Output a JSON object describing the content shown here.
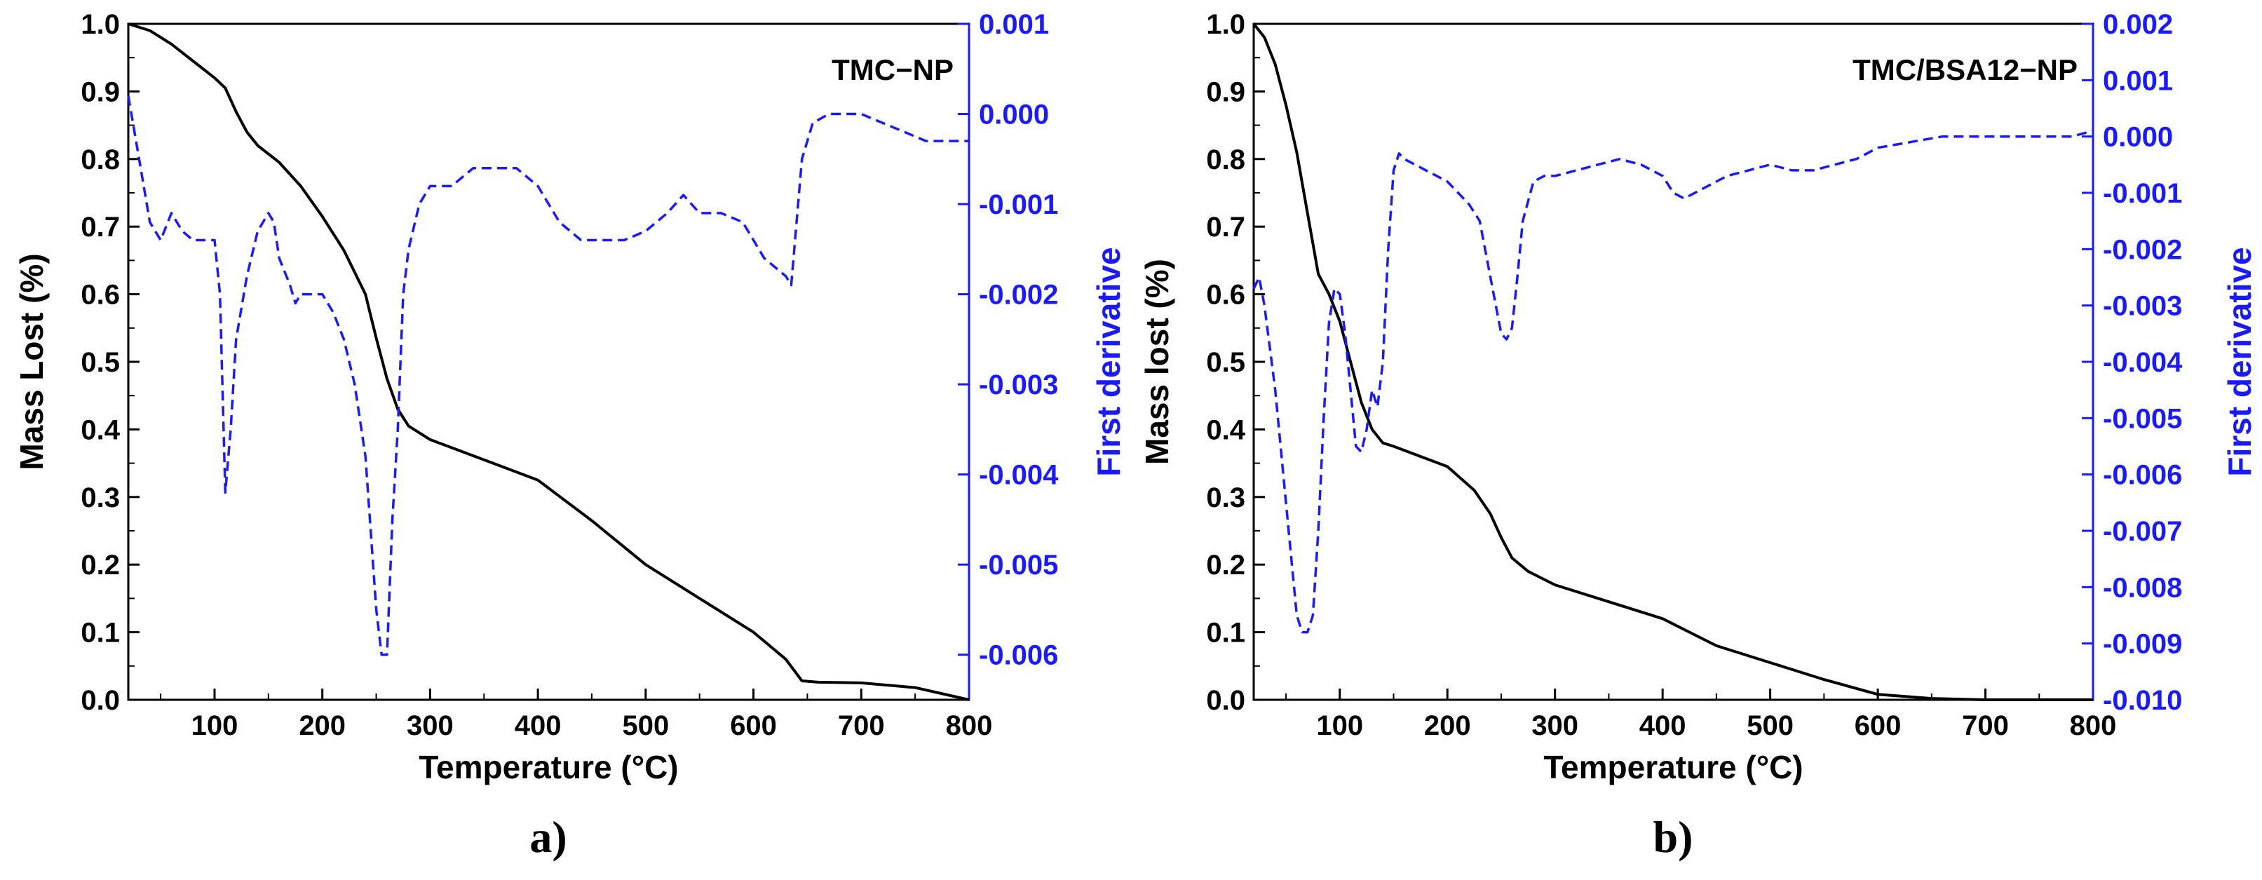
{
  "figure": {
    "panels": [
      "a)",
      "b)"
    ]
  },
  "chart_data": [
    {
      "type": "line",
      "title": "TMC−NP",
      "panel_label": "a)",
      "xlabel": "Temperature (°C)",
      "ylabel": "Mass Lost (%)",
      "y2label": "First derivative",
      "xlim": [
        20,
        800
      ],
      "ylim": [
        0.0,
        1.0
      ],
      "y2lim": [
        -0.0065,
        0.001
      ],
      "xticks": [
        "100",
        "200",
        "300",
        "400",
        "500",
        "600",
        "700",
        "800"
      ],
      "xtick_values": [
        100,
        200,
        300,
        400,
        500,
        600,
        700,
        800
      ],
      "yticks": [
        "0.0",
        "0.1",
        "0.2",
        "0.3",
        "0.4",
        "0.5",
        "0.6",
        "0.7",
        "0.8",
        "0.9",
        "1.0"
      ],
      "ytick_values": [
        0,
        0.1,
        0.2,
        0.3,
        0.4,
        0.5,
        0.6,
        0.7,
        0.8,
        0.9,
        1.0
      ],
      "y2ticks": [
        "0.001",
        "0.000",
        "-0.001",
        "-0.002",
        "-0.003",
        "-0.004",
        "-0.005",
        "-0.006"
      ],
      "y2tick_values": [
        0.001,
        0,
        -0.001,
        -0.002,
        -0.003,
        -0.004,
        -0.005,
        -0.006
      ],
      "colors": {
        "mass": "#000000",
        "derivative": "#1a1aff"
      },
      "series": [
        {
          "name": "Mass lost",
          "axis": "left",
          "style": "solid",
          "x": [
            20,
            40,
            60,
            80,
            100,
            110,
            120,
            130,
            140,
            160,
            180,
            200,
            220,
            240,
            250,
            260,
            270,
            280,
            300,
            350,
            400,
            450,
            500,
            550,
            600,
            630,
            645,
            660,
            700,
            750,
            800
          ],
          "y": [
            1.0,
            0.99,
            0.97,
            0.945,
            0.92,
            0.905,
            0.87,
            0.84,
            0.82,
            0.795,
            0.76,
            0.715,
            0.665,
            0.6,
            0.535,
            0.475,
            0.43,
            0.405,
            0.385,
            0.355,
            0.325,
            0.265,
            0.2,
            0.15,
            0.1,
            0.06,
            0.028,
            0.026,
            0.025,
            0.018,
            0.0
          ]
        },
        {
          "name": "First derivative",
          "axis": "right",
          "style": "dashed",
          "x": [
            20,
            30,
            40,
            50,
            60,
            70,
            80,
            90,
            100,
            105,
            110,
            115,
            120,
            130,
            140,
            150,
            155,
            160,
            170,
            175,
            180,
            190,
            200,
            210,
            220,
            230,
            240,
            250,
            255,
            260,
            265,
            270,
            275,
            280,
            290,
            300,
            320,
            340,
            360,
            380,
            400,
            420,
            440,
            460,
            480,
            500,
            520,
            535,
            550,
            570,
            590,
            610,
            630,
            635,
            645,
            655,
            670,
            700,
            720,
            740,
            760,
            780,
            800
          ],
          "y": [
            0.0002,
            -0.0005,
            -0.0012,
            -0.0014,
            -0.0011,
            -0.0013,
            -0.0014,
            -0.0014,
            -0.0014,
            -0.002,
            -0.0042,
            -0.0035,
            -0.0025,
            -0.0018,
            -0.0013,
            -0.0011,
            -0.0012,
            -0.0016,
            -0.0019,
            -0.0021,
            -0.002,
            -0.002,
            -0.002,
            -0.0022,
            -0.0025,
            -0.003,
            -0.0038,
            -0.0055,
            -0.006,
            -0.006,
            -0.0045,
            -0.0035,
            -0.002,
            -0.0015,
            -0.001,
            -0.0008,
            -0.0008,
            -0.0006,
            -0.0006,
            -0.0006,
            -0.0008,
            -0.0012,
            -0.0014,
            -0.0014,
            -0.0014,
            -0.0013,
            -0.0011,
            -0.0009,
            -0.0011,
            -0.0011,
            -0.0012,
            -0.0016,
            -0.0018,
            -0.0019,
            -0.0005,
            -0.0001,
            0.0,
            0.0,
            -0.0001,
            -0.0002,
            -0.0003,
            -0.0003,
            -0.0003
          ]
        }
      ]
    },
    {
      "type": "line",
      "title": "TMC/BSA12−NP",
      "panel_label": "b)",
      "xlabel": "Temperature (°C)",
      "ylabel": "Mass lost (%)",
      "y2label": "First derivative",
      "xlim": [
        20,
        800
      ],
      "ylim": [
        0.0,
        1.0
      ],
      "y2lim": [
        -0.01,
        0.002
      ],
      "xticks": [
        "100",
        "200",
        "300",
        "400",
        "500",
        "600",
        "700",
        "800"
      ],
      "xtick_values": [
        100,
        200,
        300,
        400,
        500,
        600,
        700,
        800
      ],
      "yticks": [
        "0.0",
        "0.1",
        "0.2",
        "0.3",
        "0.4",
        "0.5",
        "0.6",
        "0.7",
        "0.8",
        "0.9",
        "1.0"
      ],
      "ytick_values": [
        0,
        0.1,
        0.2,
        0.3,
        0.4,
        0.5,
        0.6,
        0.7,
        0.8,
        0.9,
        1.0
      ],
      "y2ticks": [
        "0.002",
        "0.001",
        "0.000",
        "-0.001",
        "-0.002",
        "-0.003",
        "-0.004",
        "-0.005",
        "-0.006",
        "-0.007",
        "-0.008",
        "-0.009",
        "-0.010"
      ],
      "y2tick_values": [
        0.002,
        0.001,
        0,
        -0.001,
        -0.002,
        -0.003,
        -0.004,
        -0.005,
        -0.006,
        -0.007,
        -0.008,
        -0.009,
        -0.01
      ],
      "colors": {
        "mass": "#000000",
        "derivative": "#1a1aff"
      },
      "series": [
        {
          "name": "Mass lost",
          "axis": "left",
          "style": "solid",
          "x": [
            20,
            30,
            40,
            50,
            60,
            70,
            80,
            90,
            100,
            110,
            120,
            130,
            140,
            150,
            175,
            200,
            225,
            240,
            250,
            260,
            275,
            300,
            350,
            400,
            425,
            450,
            500,
            550,
            600,
            650,
            700,
            800
          ],
          "y": [
            1.0,
            0.98,
            0.94,
            0.88,
            0.81,
            0.72,
            0.63,
            0.6,
            0.56,
            0.5,
            0.44,
            0.4,
            0.38,
            0.375,
            0.36,
            0.345,
            0.31,
            0.275,
            0.24,
            0.21,
            0.19,
            0.17,
            0.145,
            0.12,
            0.1,
            0.08,
            0.055,
            0.03,
            0.008,
            0.002,
            0.0,
            0.0
          ]
        },
        {
          "name": "First derivative",
          "axis": "right",
          "style": "dashed",
          "x": [
            20,
            25,
            30,
            40,
            50,
            60,
            65,
            70,
            75,
            80,
            85,
            90,
            95,
            100,
            105,
            110,
            115,
            120,
            125,
            130,
            135,
            140,
            145,
            150,
            155,
            160,
            170,
            180,
            200,
            220,
            230,
            240,
            250,
            255,
            260,
            265,
            270,
            280,
            290,
            300,
            320,
            340,
            360,
            380,
            400,
            410,
            420,
            430,
            440,
            460,
            480,
            500,
            520,
            540,
            560,
            580,
            600,
            630,
            660,
            700,
            740,
            780,
            800
          ],
          "y": [
            -0.0027,
            -0.0025,
            -0.003,
            -0.0045,
            -0.0065,
            -0.0085,
            -0.0088,
            -0.0088,
            -0.0085,
            -0.007,
            -0.005,
            -0.0033,
            -0.0027,
            -0.0028,
            -0.0035,
            -0.0045,
            -0.0055,
            -0.0056,
            -0.0052,
            -0.0045,
            -0.0048,
            -0.004,
            -0.002,
            -0.0006,
            -0.0003,
            -0.0004,
            -0.0005,
            -0.0006,
            -0.0008,
            -0.0012,
            -0.0015,
            -0.0025,
            -0.0035,
            -0.0036,
            -0.0034,
            -0.0025,
            -0.0015,
            -0.0008,
            -0.0007,
            -0.0007,
            -0.0006,
            -0.0005,
            -0.0004,
            -0.0005,
            -0.0007,
            -0.001,
            -0.0011,
            -0.001,
            -0.0009,
            -0.0007,
            -0.0006,
            -0.0005,
            -0.0006,
            -0.0006,
            -0.0005,
            -0.0004,
            -0.0002,
            -0.0001,
            0.0,
            0.0,
            0.0,
            0.0,
            0.0001
          ]
        }
      ]
    }
  ]
}
